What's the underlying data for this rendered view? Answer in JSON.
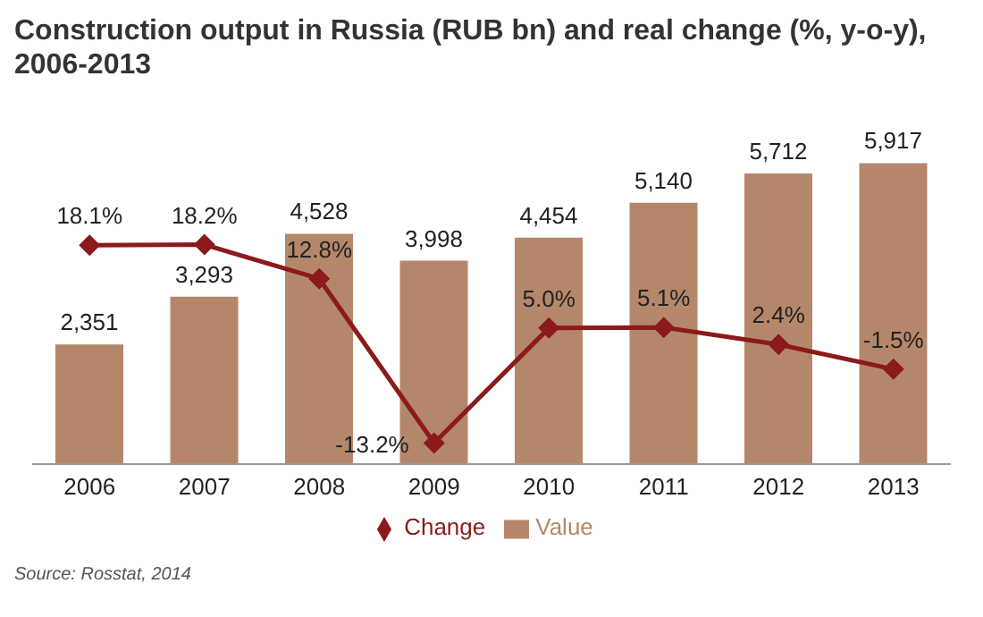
{
  "chart_data": {
    "type": "bar",
    "title": "Construction output in Russia (RUB bn) and real change (%, y-o-y), 2006-2013",
    "categories": [
      "2006",
      "2007",
      "2008",
      "2009",
      "2010",
      "2011",
      "2012",
      "2013"
    ],
    "series": [
      {
        "name": "Value",
        "color": "#b5876a",
        "values": [
          2351,
          3293,
          4528,
          3998,
          4454,
          5140,
          5712,
          5917
        ],
        "value_labels": [
          "2,351",
          "3,293",
          "4,528",
          "3,998",
          "4,454",
          "5,140",
          "5,712",
          "5,917"
        ]
      },
      {
        "name": "Change",
        "type": "line",
        "axis": "y2",
        "color": "#8b1a1a",
        "marker": "diamond",
        "values": [
          18.1,
          18.2,
          12.8,
          -13.2,
          5.0,
          5.1,
          2.4,
          -1.5
        ],
        "value_labels": [
          "18.1%",
          "18.2%",
          "12.8%",
          "-13.2%",
          "5.0%",
          "5.1%",
          "2.4%",
          "-1.5%"
        ]
      }
    ],
    "tick_labels": "x",
    "legend": "bottom",
    "annotations": [
      "Source: Rosstat, 2014"
    ]
  }
}
